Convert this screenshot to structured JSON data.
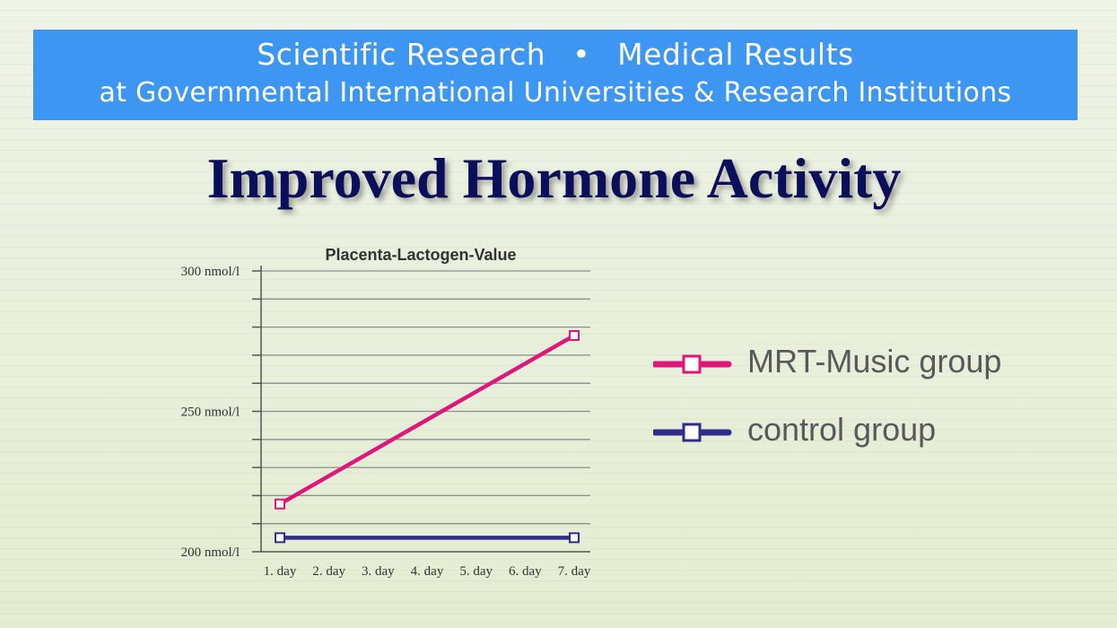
{
  "banner": {
    "line1_left": "Scientific Research",
    "bullet": "•",
    "line1_right": "Medical Results",
    "line2": "at Governmental International Universities & Research Institutions",
    "color": "#3d96f2"
  },
  "main_title": "Improved Hormone Activity",
  "chart_data": {
    "type": "line",
    "title": "Placenta-Lactogen-Value",
    "categories": [
      "1. day",
      "2. day",
      "3. day",
      "4. day",
      "5. day",
      "6. day",
      "7. day"
    ],
    "ylim": [
      200,
      300
    ],
    "yticks": [
      200,
      250,
      300
    ],
    "ytick_labels": [
      "200 nmol/l",
      "250 nmol/l",
      "300 nmol/l"
    ],
    "minor_tick_step": 10,
    "grid": true,
    "legend_position": "right",
    "series": [
      {
        "name": "MRT-Music group",
        "color": "#e0177a",
        "points": [
          {
            "x": "1. day",
            "y": 217
          },
          {
            "x": "7. day",
            "y": 277
          }
        ]
      },
      {
        "name": "control group",
        "color": "#2e2c8c",
        "points": [
          {
            "x": "1. day",
            "y": 205
          },
          {
            "x": "7. day",
            "y": 205
          }
        ]
      }
    ]
  }
}
